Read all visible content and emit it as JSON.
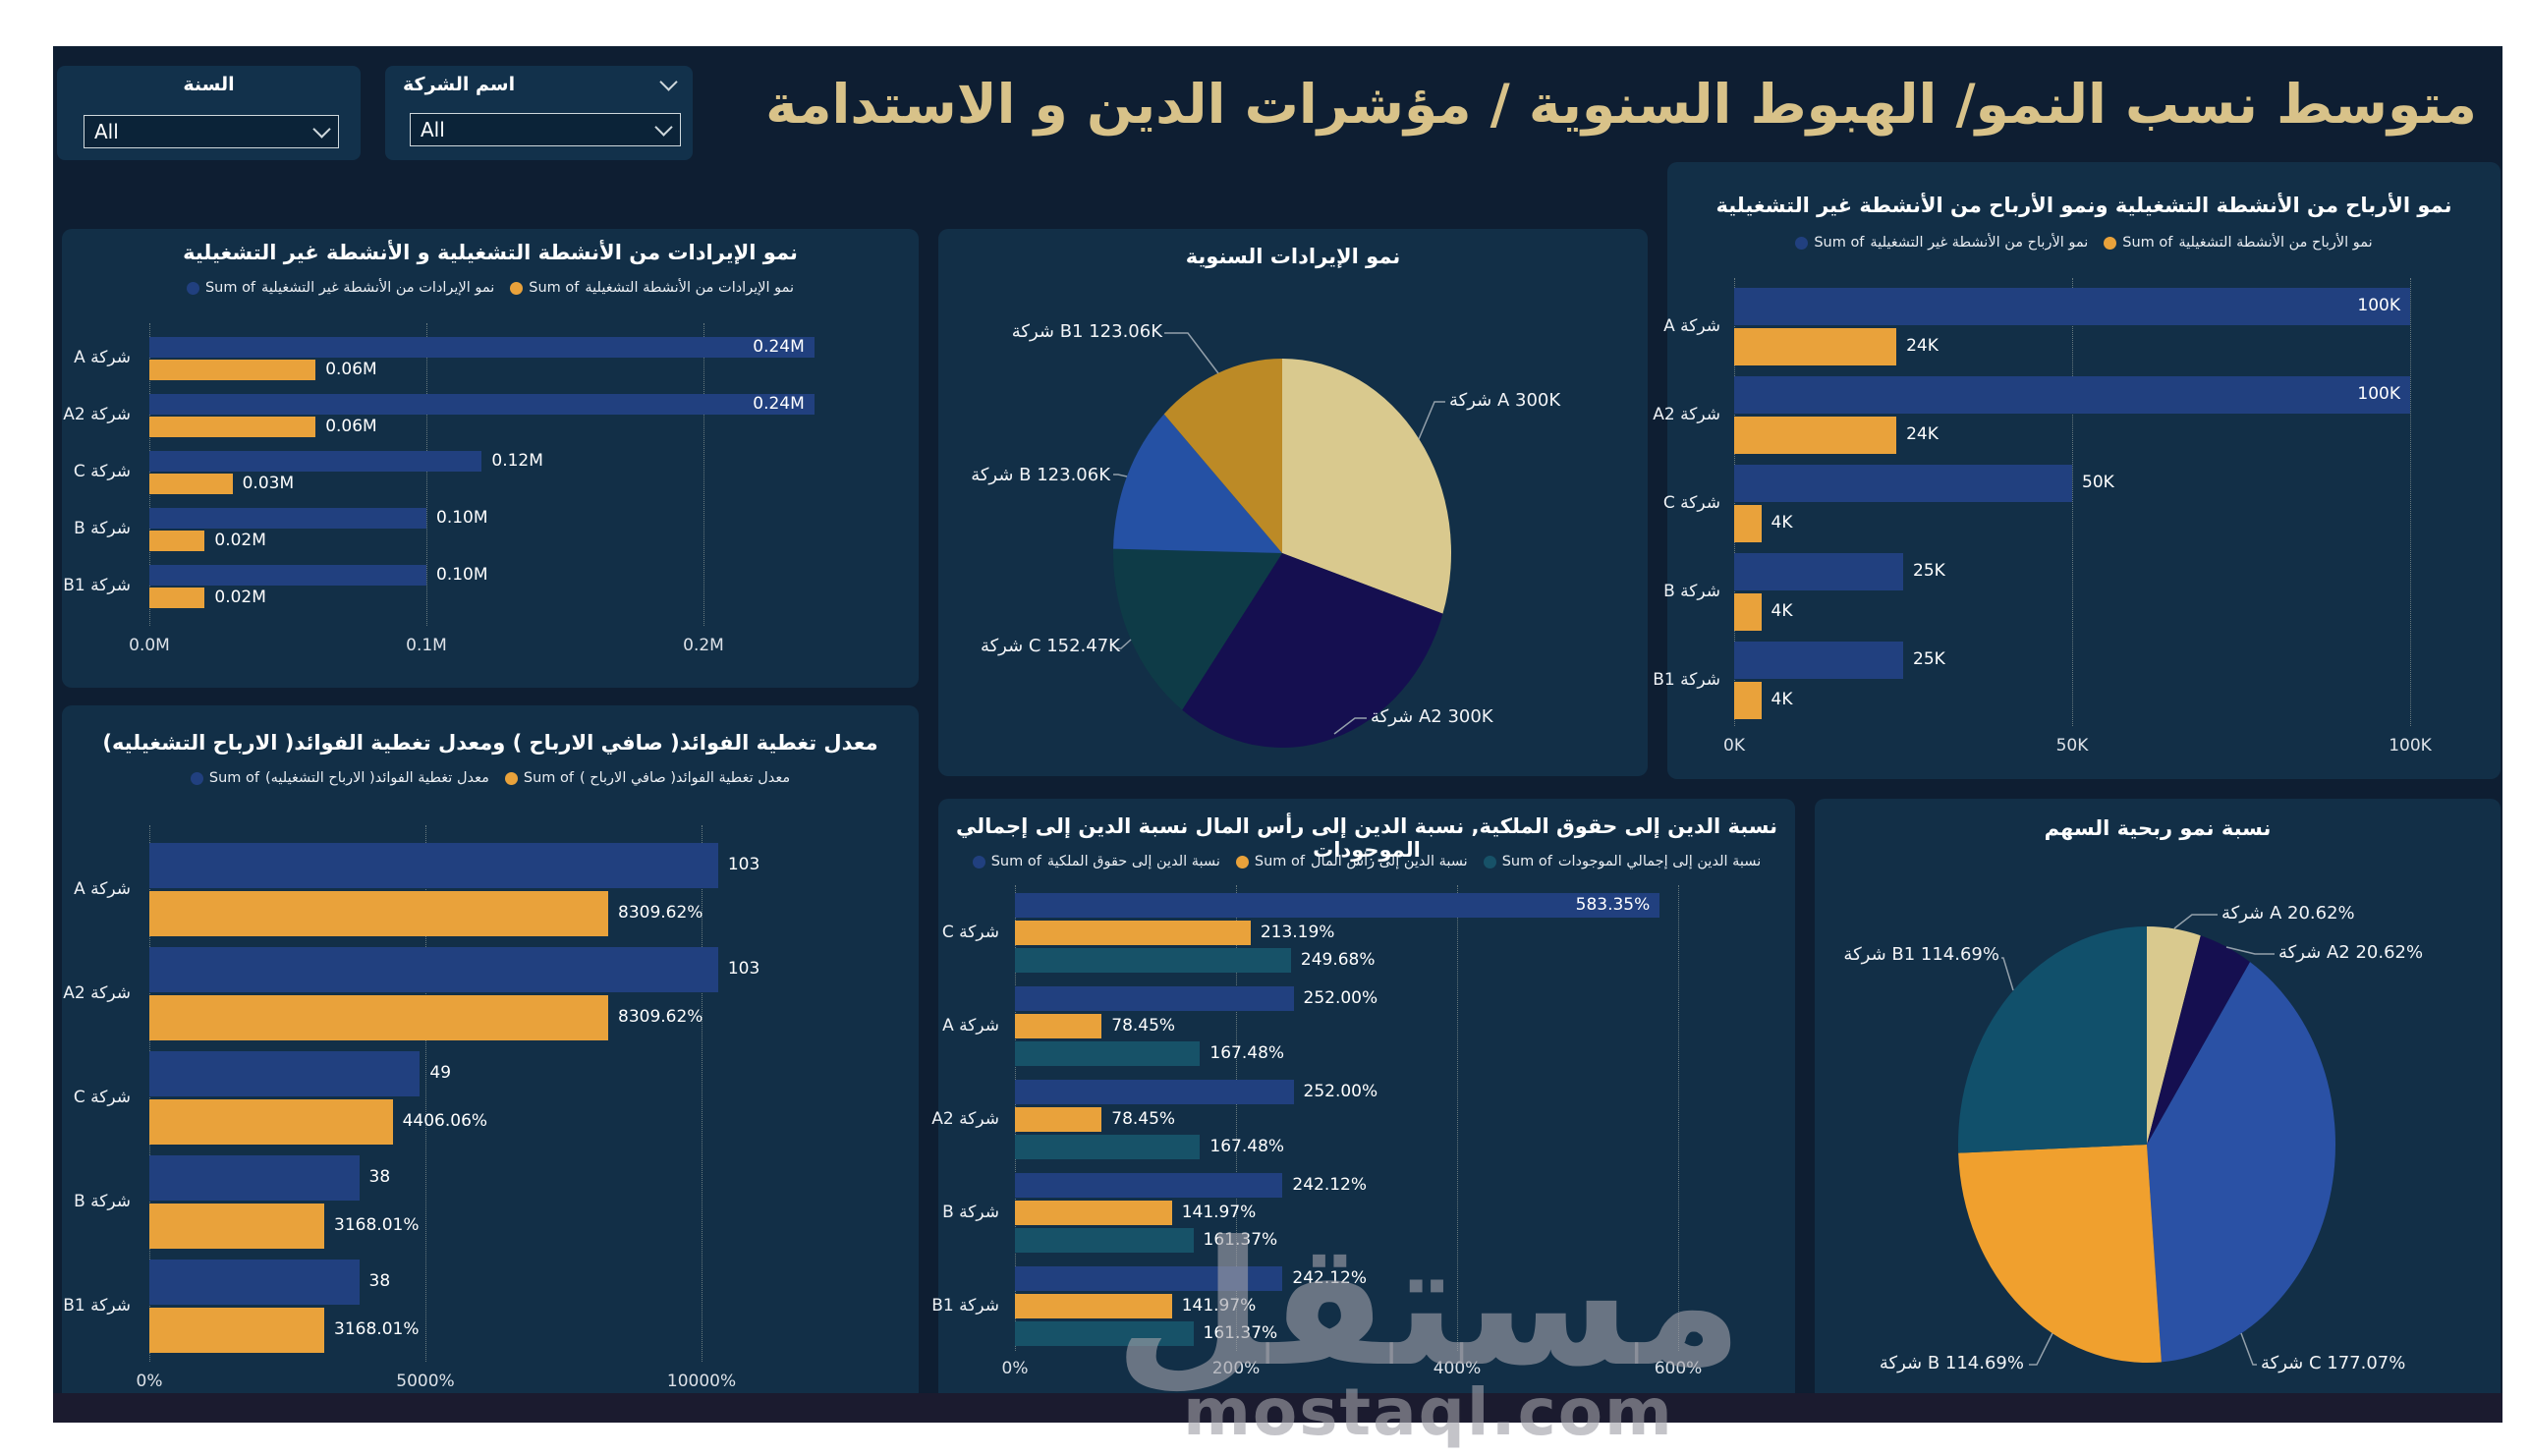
{
  "page_title": "متوسط نسب النمو/ الهبوط السنوية  / مؤشرات الدين و الاستدامة",
  "filters": {
    "year": {
      "label": "السنة",
      "value": "All"
    },
    "company": {
      "label": "اسم الشركة",
      "value": "All"
    }
  },
  "watermark": {
    "arabic": "مستقل",
    "domain": "mostaql.com"
  },
  "colors": {
    "page_bg": "#0e1e32",
    "panel_bg": "#122f47",
    "accent_gold": "#d8c289",
    "bar_blue": "#21407f",
    "bar_orange": "#e9a23b",
    "bar_teal": "#175268",
    "footer_bg": "#1b1b2f"
  },
  "chart_data": [
    {
      "id": "revenue_growth",
      "type": "bar",
      "title": "نمو الإيرادات من الأنشطة التشغيلية و الأنشطة غير التشغيلية",
      "legend_prefix": "Sum of",
      "categories": [
        "شركة A",
        "شركة A2",
        "شركة C",
        "شركة B",
        "شركة B1"
      ],
      "series": [
        {
          "name": "نمو الإيرادات من الأنشطة غير التشغيلية",
          "color": "#21407f",
          "values": [
            0.24,
            0.24,
            0.12,
            0.1,
            0.1
          ],
          "labels": [
            "0.24M",
            "0.24M",
            "0.12M",
            "0.10M",
            "0.10M"
          ]
        },
        {
          "name": "نمو الإيرادات من الأنشطة التشغيلية",
          "color": "#e9a23b",
          "values": [
            0.06,
            0.06,
            0.03,
            0.02,
            0.02
          ],
          "labels": [
            "0.06M",
            "0.06M",
            "0.03M",
            "0.02M",
            "0.02M"
          ]
        }
      ],
      "xticks": {
        "labels": [
          "0.0M",
          "0.1M",
          "0.2M"
        ],
        "values": [
          0,
          0.1,
          0.2
        ]
      }
    },
    {
      "id": "annual_revenue",
      "type": "pie",
      "title": "نمو الإيرادات السنوية",
      "slices": [
        {
          "label": "شركة A",
          "value_label": "300K",
          "value": 300,
          "color": "#d9c98e"
        },
        {
          "label": "شركة A2",
          "value_label": "300K",
          "value": 300,
          "color": "#150f50"
        },
        {
          "label": "شركة C",
          "value_label": "152.47K",
          "value": 152.47,
          "color": "#0e3b47"
        },
        {
          "label": "شركة B",
          "value_label": "123.06K",
          "value": 123.06,
          "color": "#2551a4"
        },
        {
          "label": "شركة B1",
          "value_label": "123.06K",
          "value": 123.06,
          "color": "#bc8a26"
        }
      ]
    },
    {
      "id": "interest_coverage",
      "type": "bar",
      "title": "معدل تغطية الفوائد( صافي الارباح ) ومعدل تغطية الفوائد( الارباح التشغيليه)",
      "legend_prefix": "Sum of",
      "categories": [
        "شركة A",
        "شركة A2",
        "شركة C",
        "شركة B",
        "شركة B1"
      ],
      "series": [
        {
          "name": "معدل تغطية الفوائد( الارباح التشغيليه)",
          "color": "#21407f",
          "values": [
            103,
            103,
            49,
            38,
            38
          ],
          "labels": [
            "103",
            "103",
            "49",
            "38",
            "38"
          ]
        },
        {
          "name": "معدل تغطية الفوائد( صافي الارباح )",
          "color": "#e9a23b",
          "values": [
            8309.62,
            8309.62,
            4406.06,
            3168.01,
            3168.01
          ],
          "labels": [
            "8309.62%",
            "8309.62%",
            "4406.06%",
            "3168.01%",
            "3168.01%"
          ]
        }
      ],
      "xticks": {
        "labels": [
          "0%",
          "5000%",
          "10000%"
        ],
        "values": [
          0,
          5000,
          10000
        ]
      }
    },
    {
      "id": "debt_ratios",
      "type": "bar",
      "title": "نسبة الدين إلى حقوق الملكية, نسبة الدين إلى رأس المال نسبة الدين إلى إجمالي الموجودات",
      "legend_prefix": "Sum of",
      "categories": [
        "شركة C",
        "شركة A",
        "شركة A2",
        "شركة B",
        "شركة B1"
      ],
      "series": [
        {
          "name": "نسبة الدين إلى حقوق الملكية",
          "color": "#21407f",
          "values": [
            583.35,
            252.0,
            252.0,
            242.12,
            242.12
          ],
          "labels": [
            "583.35%",
            "252.00%",
            "252.00%",
            "242.12%",
            "242.12%"
          ]
        },
        {
          "name": "نسبة الدين إلى رأس المال",
          "color": "#e9a23b",
          "values": [
            213.19,
            78.45,
            78.45,
            141.97,
            141.97
          ],
          "labels": [
            "213.19%",
            "78.45%",
            "78.45%",
            "141.97%",
            "141.97%"
          ]
        },
        {
          "name": "نسبة الدين إلى إجمالي الموجودات",
          "color": "#175268",
          "values": [
            249.68,
            167.48,
            167.48,
            161.37,
            161.37
          ],
          "labels": [
            "249.68%",
            "167.48%",
            "167.48%",
            "161.37%",
            "161.37%"
          ]
        }
      ],
      "xticks": {
        "labels": [
          "0%",
          "200%",
          "400%",
          "600%"
        ],
        "values": [
          0,
          200,
          400,
          600
        ]
      }
    },
    {
      "id": "profit_growth",
      "type": "bar",
      "title": "نمو الأرباح من الأنشطة التشغيلية ونمو الأرباح من الأنشطة غير التشغيلية",
      "legend_prefix": "Sum of",
      "categories": [
        "شركة A",
        "شركة A2",
        "شركة C",
        "شركة B",
        "شركة B1"
      ],
      "series": [
        {
          "name": "نمو الأرباح من الأنشطة غير التشغيلية",
          "color": "#21407f",
          "values": [
            100,
            100,
            50,
            25,
            25
          ],
          "labels": [
            "100K",
            "100K",
            "50K",
            "25K",
            "25K"
          ]
        },
        {
          "name": "نمو الأرباح من الأنشطة التشغيلية",
          "color": "#e9a23b",
          "values": [
            24,
            24,
            4,
            4,
            4
          ],
          "labels": [
            "24K",
            "24K",
            "4K",
            "4K",
            "4K"
          ]
        }
      ],
      "xticks": {
        "labels": [
          "0K",
          "50K",
          "100K"
        ],
        "values": [
          0,
          50,
          100
        ]
      }
    },
    {
      "id": "eps_growth",
      "type": "pie",
      "title": "نسبة نمو ربحية السهم",
      "slices": [
        {
          "label": "شركة A",
          "value_label": "20.62%",
          "value": 20.62,
          "color": "#d9c98e"
        },
        {
          "label": "شركة A2",
          "value_label": "20.62%",
          "value": 20.62,
          "color": "#150f50"
        },
        {
          "label": "شركة C",
          "value_label": "177.07%",
          "value": 177.07,
          "color": "#2a51a5"
        },
        {
          "label": "شركة B",
          "value_label": "114.69%",
          "value": 114.69,
          "color": "#f0a02e"
        },
        {
          "label": "شركة B1",
          "value_label": "114.69%",
          "value": 114.69,
          "color": "#11506b"
        }
      ]
    }
  ]
}
